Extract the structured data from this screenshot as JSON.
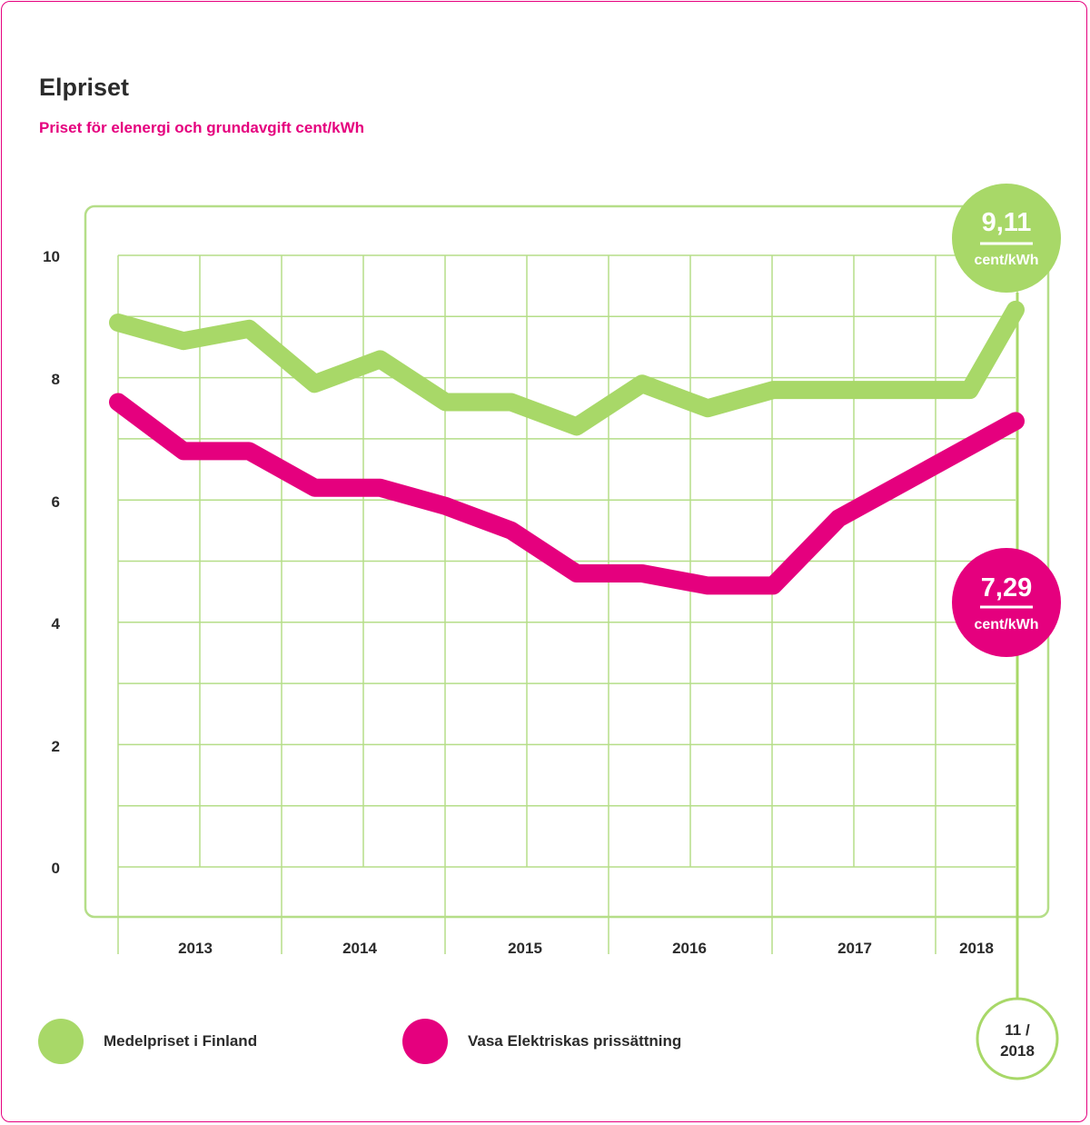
{
  "title": "Elpriset",
  "subtitle": "Priset för elenergi och grundavgift cent/kWh",
  "colors": {
    "accent": "#e5007e",
    "green": "#a8d868",
    "grid": "#b5de88",
    "text": "#2b2b2b"
  },
  "chart_data": {
    "type": "line",
    "title": "Elpriset",
    "subtitle": "Priset för elenergi och grundavgift cent/kWh",
    "ylim": [
      0,
      10
    ],
    "yticks": [
      "10",
      "8",
      "6",
      "4",
      "2",
      "0"
    ],
    "year_labels": [
      "2013",
      "2014",
      "2015",
      "2016",
      "2017",
      "2018"
    ],
    "grid": true,
    "legend_position": "bottom",
    "x": [
      2012.0,
      2012.5,
      2013.0,
      2013.5,
      2014.0,
      2014.5,
      2015.0,
      2015.5,
      2016.0,
      2016.5,
      2017.0,
      2017.5,
      2018.0,
      2018.5,
      2018.85
    ],
    "series": [
      {
        "name": "Medelpriset i Finland",
        "color": "#a8d868",
        "values": [
          8.9,
          8.6,
          8.8,
          7.9,
          8.3,
          7.6,
          7.6,
          7.2,
          7.9,
          7.5,
          7.8,
          7.8,
          null,
          7.8,
          9.11
        ]
      },
      {
        "name": "Vasa Elektriskas prissättning",
        "color": "#e5007e",
        "values": [
          7.6,
          6.8,
          6.8,
          6.2,
          6.2,
          5.9,
          5.5,
          4.8,
          4.8,
          4.6,
          4.6,
          5.7,
          null,
          null,
          7.29
        ]
      }
    ],
    "endpoint_labels": [
      {
        "series": "Medelpriset i Finland",
        "value": "9,11",
        "unit": "cent/kWh"
      },
      {
        "series": "Vasa Elektriskas prissättning",
        "value": "7,29",
        "unit": "cent/kWh"
      }
    ],
    "current_marker": {
      "line1": "11 /",
      "line2": "2018"
    }
  },
  "legend": {
    "items": [
      {
        "label": "Medelpriset i Finland",
        "color": "#a8d868"
      },
      {
        "label": "Vasa Elektriskas prissättning",
        "color": "#e5007e"
      }
    ]
  }
}
